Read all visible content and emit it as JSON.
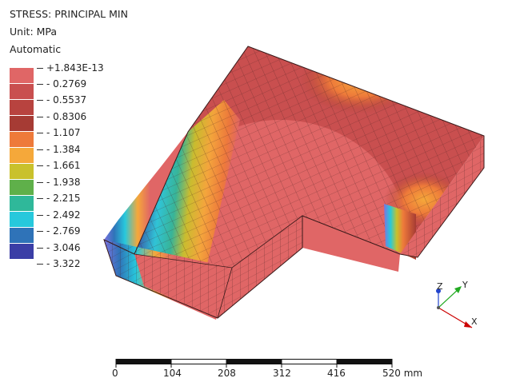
{
  "header": {
    "result_name": "STRESS: PRINCIPAL MIN",
    "unit": "Unit: MPa",
    "range_mode": "Automatic"
  },
  "legend": {
    "labels": [
      "+1.843E-13",
      "- 0.2769",
      "- 0.5537",
      "- 0.8306",
      "- 1.107",
      "- 1.384",
      "- 1.661",
      "- 1.938",
      "- 2.215",
      "- 2.492",
      "- 2.769",
      "- 3.046",
      "- 3.322"
    ],
    "colors": [
      "#e06666",
      "#c94f4f",
      "#b8433f",
      "#a63b34",
      "#ee7a3a",
      "#f5a83a",
      "#c9c12c",
      "#5fb04a",
      "#2fb89a",
      "#27c8dc",
      "#2f73b8",
      "#3b3ea6",
      "#7b73e0"
    ]
  },
  "scale_bar": {
    "ticks": [
      "0",
      "104",
      "208",
      "312",
      "416",
      "520 mm"
    ]
  },
  "triad": {
    "x": "X",
    "y": "Y",
    "z": "Z"
  }
}
